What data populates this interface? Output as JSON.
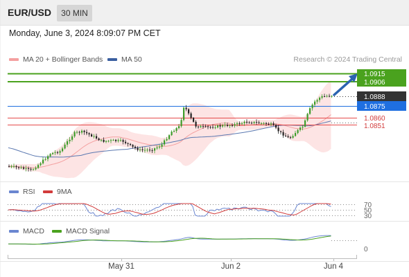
{
  "header": {
    "symbol": "EUR/USD",
    "timeframe": "30 MIN",
    "datetime": "Monday, June 3, 2024 8:09:07 PM CET"
  },
  "legend": {
    "items": [
      {
        "label": "MA 20 + Bollinger Bands",
        "color": "#f4a0a0"
      },
      {
        "label": "MA 50",
        "color": "#3a5fa0"
      }
    ],
    "credit": "Research © 2024 Trading Central"
  },
  "colors": {
    "resistance": "#4aa21e",
    "pivot": "#1f6fe0",
    "support": "#e54a4a",
    "current": "#333333",
    "candle_up": "#3c9d2a",
    "candle_down": "#222222",
    "bb_fill": "#fde4e4",
    "ma20": "#f4a0a0",
    "ma50": "#3a5fa0",
    "rsi": "#6a86d0",
    "rsi_ma": "#d23c3c",
    "macd": "#6a86d0",
    "macd_signal": "#4aa21e",
    "arrow": "#2b63b0"
  },
  "price_levels": [
    {
      "value": "1.0915",
      "type": "resistance"
    },
    {
      "value": "1.0906",
      "type": "resistance"
    },
    {
      "value": "1.0888",
      "type": "current"
    },
    {
      "value": "1.0875",
      "type": "pivot"
    },
    {
      "value": "1.0860",
      "type": "support"
    },
    {
      "value": "1.0851",
      "type": "support"
    }
  ],
  "rsi_panel": {
    "legend": [
      {
        "label": "RSI",
        "color": "#6a86d0"
      },
      {
        "label": "9MA",
        "color": "#d23c3c"
      }
    ],
    "levels": [
      "70",
      "50",
      "30"
    ]
  },
  "macd_panel": {
    "legend": [
      {
        "label": "MACD",
        "color": "#6a86d0"
      },
      {
        "label": "MACD Signal",
        "color": "#4aa21e"
      }
    ],
    "zero_label": "0"
  },
  "x_axis": {
    "labels": [
      "May 31",
      "Jun 2",
      "Jun 4"
    ]
  },
  "forecast_arrow": {
    "direction": "up",
    "target": "1.0915"
  }
}
